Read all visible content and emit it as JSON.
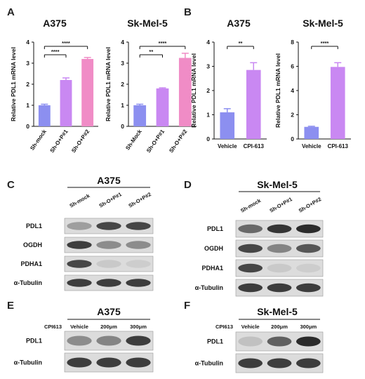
{
  "colors": {
    "blue": "#8c8ff0",
    "violet": "#c988f2",
    "pink": "#f08cc6",
    "blot_bg": "#dcdcdc",
    "band": "#2b2b2b"
  },
  "panel_letters": {
    "A": "A",
    "B": "B",
    "C": "C",
    "D": "D",
    "E": "E",
    "F": "F"
  },
  "chart_data": [
    {
      "panel": "A",
      "type": "bar",
      "title": "A375",
      "ylabel": "Relative PDL1 mRNA level",
      "ylim": [
        0,
        4
      ],
      "yticks": [
        "0",
        "1",
        "2",
        "3",
        "4"
      ],
      "categories": [
        "Sh-mock",
        "Sh-O+P#1",
        "Sh-O+P#2"
      ],
      "values": [
        1.0,
        2.2,
        3.2
      ],
      "errors": [
        0.05,
        0.1,
        0.07
      ],
      "colors": [
        "#8c8ff0",
        "#c988f2",
        "#f08cc6"
      ],
      "significance": [
        {
          "from": 0,
          "to": 1,
          "label": "****"
        },
        {
          "from": 0,
          "to": 2,
          "label": "****"
        }
      ]
    },
    {
      "panel": "A",
      "type": "bar",
      "title": "Sk-Mel-5",
      "ylabel": "Relative PDL1 mRNA level",
      "ylim": [
        0,
        4
      ],
      "yticks": [
        "0",
        "1",
        "2",
        "3",
        "4"
      ],
      "categories": [
        "Sh-Mock",
        "Sh-O+P#1",
        "Sh-O+P#2"
      ],
      "values": [
        1.0,
        1.8,
        3.25
      ],
      "errors": [
        0.05,
        0.03,
        0.22
      ],
      "colors": [
        "#8c8ff0",
        "#c988f2",
        "#f08cc6"
      ],
      "significance": [
        {
          "from": 0,
          "to": 1,
          "label": "**"
        },
        {
          "from": 0,
          "to": 2,
          "label": "****"
        }
      ]
    },
    {
      "panel": "B",
      "type": "bar",
      "title": "A375",
      "ylabel": "Relative PDL1 mRNA level",
      "ylim": [
        0,
        4
      ],
      "yticks": [
        "0",
        "1",
        "2",
        "3",
        "4"
      ],
      "categories": [
        "Vehicle",
        "CPI-613"
      ],
      "values": [
        1.1,
        2.85
      ],
      "errors": [
        0.15,
        0.3
      ],
      "colors": [
        "#8c8ff0",
        "#c988f2"
      ],
      "significance": [
        {
          "from": 0,
          "to": 1,
          "label": "**"
        }
      ]
    },
    {
      "panel": "B",
      "type": "bar",
      "title": "Sk-Mel-5",
      "ylabel": "Relative PDL1 mRNA level",
      "ylim": [
        0,
        8
      ],
      "yticks": [
        "0",
        "2",
        "4",
        "6",
        "8"
      ],
      "categories": [
        "Vehicle",
        "CPI-613"
      ],
      "values": [
        1.0,
        5.95
      ],
      "errors": [
        0.05,
        0.35
      ],
      "colors": [
        "#8c8ff0",
        "#c988f2"
      ],
      "significance": [
        {
          "from": 0,
          "to": 1,
          "label": "****"
        }
      ]
    }
  ],
  "blots": [
    {
      "panel": "C",
      "title": "A375",
      "lanes": [
        "Sh-mock",
        "Sh-O+P#1",
        "Sh-O+P#2"
      ],
      "rows": [
        {
          "protein": "PDL1",
          "intensity": [
            0.35,
            0.85,
            0.85
          ]
        },
        {
          "protein": "OGDH",
          "intensity": [
            0.9,
            0.45,
            0.45
          ]
        },
        {
          "protein": "PDHA1",
          "intensity": [
            0.85,
            0.1,
            0.08
          ]
        },
        {
          "protein": "α-Tubulin",
          "intensity": [
            0.9,
            0.9,
            0.9
          ]
        }
      ]
    },
    {
      "panel": "D",
      "title": "Sk-Mel-5",
      "lanes": [
        "Sh-mock",
        "Sh-O+P#1",
        "Sh-O+P#2"
      ],
      "rows": [
        {
          "protein": "PDL1",
          "intensity": [
            0.65,
            0.95,
            1.0
          ]
        },
        {
          "protein": "OGDH",
          "intensity": [
            0.85,
            0.5,
            0.75
          ]
        },
        {
          "protein": "PDHA1",
          "intensity": [
            0.85,
            0.1,
            0.08
          ]
        },
        {
          "protein": "α-Tubulin",
          "intensity": [
            0.9,
            0.9,
            0.9
          ]
        }
      ]
    },
    {
      "panel": "E",
      "title": "A375",
      "treatment": "CPI613",
      "lanes": [
        "Vehicle",
        "200μm",
        "300μm"
      ],
      "rows": [
        {
          "protein": "PDL1",
          "intensity": [
            0.45,
            0.5,
            0.9
          ]
        },
        {
          "protein": "α-Tubulin",
          "intensity": [
            0.9,
            0.9,
            0.9
          ]
        }
      ]
    },
    {
      "panel": "F",
      "title": "Sk-Mel-5",
      "treatment": "CPI613",
      "lanes": [
        "Vehicle",
        "200μm",
        "300μm"
      ],
      "rows": [
        {
          "protein": "PDL1",
          "intensity": [
            0.15,
            0.7,
            1.0
          ]
        },
        {
          "protein": "α-Tubulin",
          "intensity": [
            0.9,
            0.9,
            0.9
          ]
        }
      ]
    }
  ]
}
